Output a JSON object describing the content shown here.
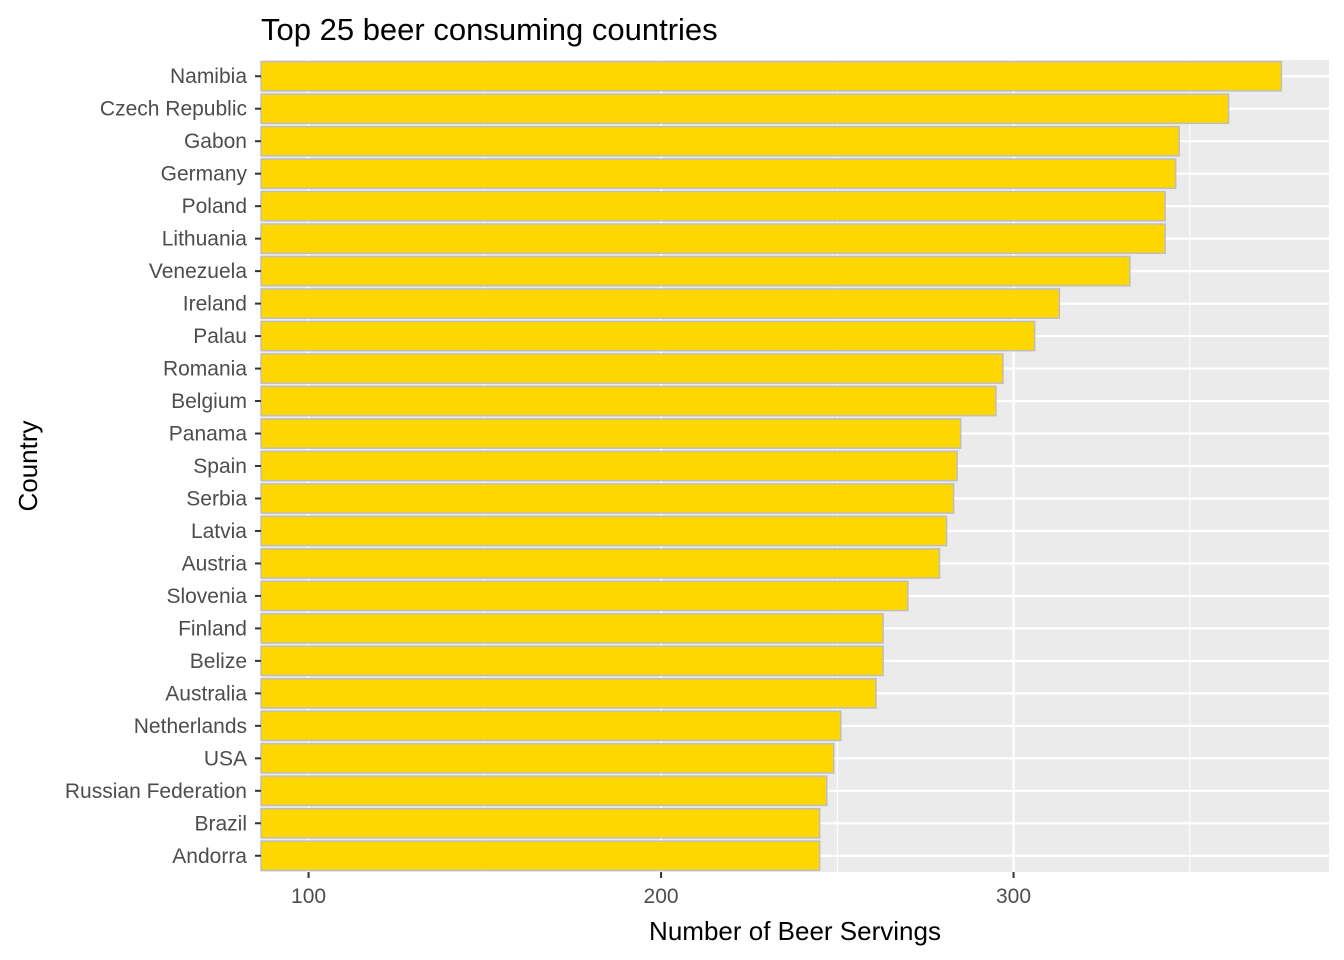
{
  "chart_data": {
    "type": "bar",
    "orientation": "horizontal",
    "title": "Top 25 beer consuming countries",
    "xlabel": "Number of Beer Servings",
    "ylabel": "Country",
    "categories": [
      "Namibia",
      "Czech Republic",
      "Gabon",
      "Germany",
      "Poland",
      "Lithuania",
      "Venezuela",
      "Ireland",
      "Palau",
      "Romania",
      "Belgium",
      "Panama",
      "Spain",
      "Serbia",
      "Latvia",
      "Austria",
      "Slovenia",
      "Finland",
      "Belize",
      "Australia",
      "Netherlands",
      "USA",
      "Russian Federation",
      "Brazil",
      "Andorra"
    ],
    "values": [
      376,
      361,
      347,
      346,
      343,
      343,
      333,
      313,
      306,
      297,
      295,
      285,
      284,
      283,
      281,
      279,
      270,
      263,
      263,
      261,
      251,
      249,
      247,
      245,
      245
    ],
    "xlim": [
      86.5,
      389.5
    ],
    "xticks": [
      100,
      200,
      300
    ],
    "grid": true,
    "colors": {
      "bar_fill": "#FFD700",
      "bar_outline": "#BEBEBE",
      "panel_background": "#EBEBEB",
      "grid": "#FFFFFF"
    }
  }
}
